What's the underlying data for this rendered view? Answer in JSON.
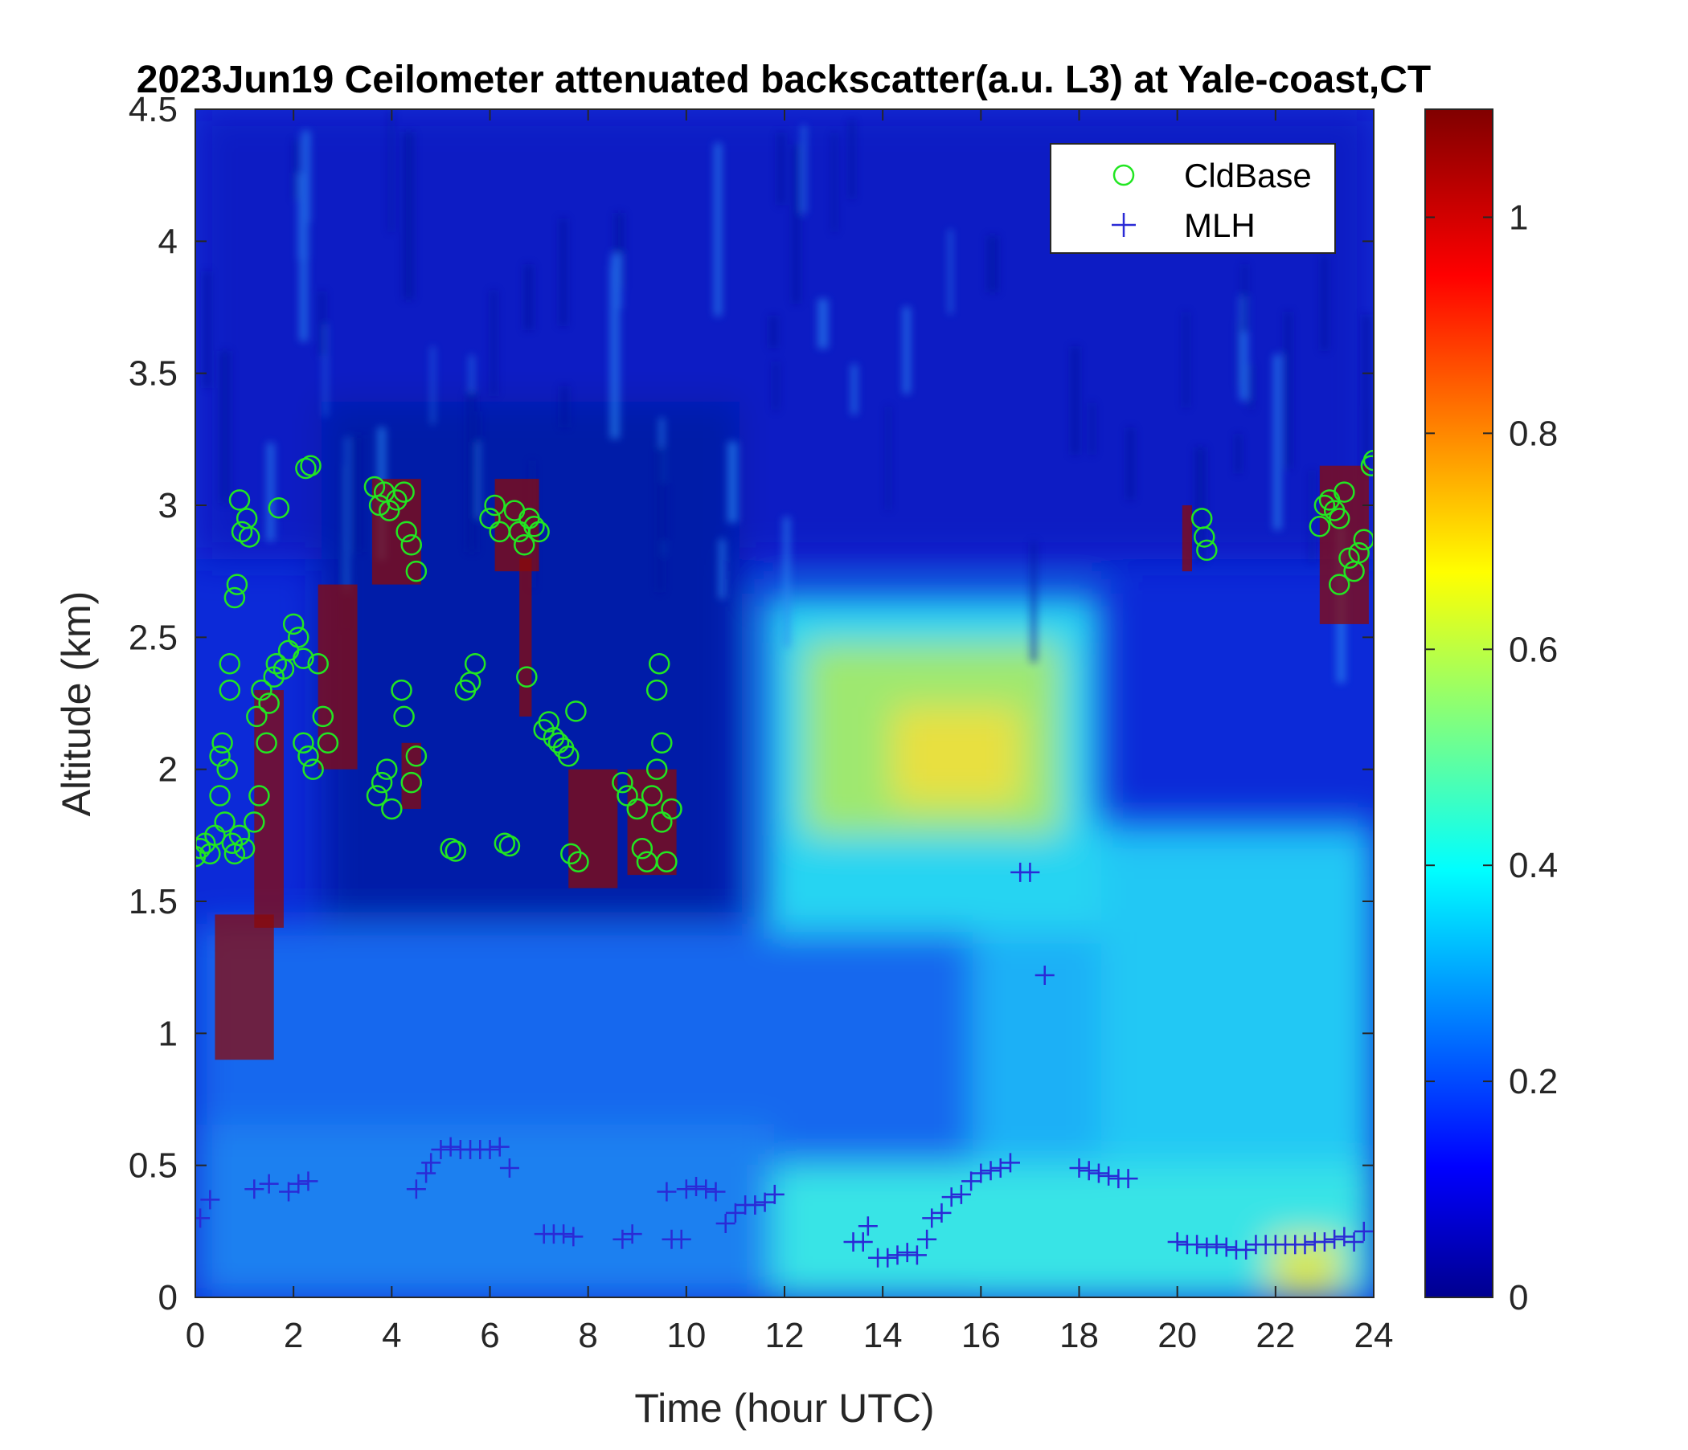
{
  "chart_data": {
    "type": "heatmap",
    "title": "2023Jun19 Ceilometer attenuated backscatter(a.u. L3) at Yale-coast,CT",
    "xlabel": "Time (hour UTC)",
    "ylabel": "Altitude (km)",
    "xlim": [
      0,
      24
    ],
    "ylim": [
      0,
      4.5
    ],
    "x_ticks": [
      "0",
      "2",
      "4",
      "6",
      "8",
      "10",
      "12",
      "14",
      "16",
      "18",
      "20",
      "22",
      "24"
    ],
    "y_ticks": [
      "0",
      "0.5",
      "1",
      "1.5",
      "2",
      "2.5",
      "3",
      "3.5",
      "4",
      "4.5"
    ],
    "colorbar": {
      "colormap": "jet",
      "range": [
        0,
        1.1
      ],
      "ticks": [
        "0",
        "0.2",
        "0.4",
        "0.6",
        "0.8",
        "1"
      ]
    },
    "grid": false,
    "legend_position": "top-right",
    "legend": [
      {
        "label": "CldBase",
        "marker": "circle",
        "color": "#22e622"
      },
      {
        "label": "MLH",
        "marker": "plus",
        "color": "#2a2ad6"
      }
    ],
    "series": [
      {
        "name": "CldBase",
        "marker": "circle",
        "color": "#22e622",
        "points": [
          [
            0.0,
            1.67
          ],
          [
            0.1,
            1.7
          ],
          [
            0.2,
            1.72
          ],
          [
            0.3,
            1.68
          ],
          [
            0.4,
            1.75
          ],
          [
            0.5,
            1.9
          ],
          [
            0.5,
            2.05
          ],
          [
            0.55,
            2.1
          ],
          [
            0.6,
            1.8
          ],
          [
            0.65,
            2.0
          ],
          [
            0.7,
            2.3
          ],
          [
            0.7,
            2.4
          ],
          [
            0.75,
            1.72
          ],
          [
            0.8,
            1.68
          ],
          [
            0.8,
            2.65
          ],
          [
            0.85,
            2.7
          ],
          [
            0.9,
            1.75
          ],
          [
            0.9,
            3.02
          ],
          [
            0.95,
            2.9
          ],
          [
            1.0,
            1.7
          ],
          [
            1.05,
            2.95
          ],
          [
            1.1,
            2.88
          ],
          [
            1.2,
            1.8
          ],
          [
            1.25,
            2.2
          ],
          [
            1.3,
            1.9
          ],
          [
            1.35,
            2.3
          ],
          [
            1.45,
            2.1
          ],
          [
            1.5,
            2.25
          ],
          [
            1.6,
            2.35
          ],
          [
            1.65,
            2.4
          ],
          [
            1.7,
            2.99
          ],
          [
            1.8,
            2.38
          ],
          [
            1.9,
            2.45
          ],
          [
            2.0,
            2.55
          ],
          [
            2.1,
            2.5
          ],
          [
            2.2,
            2.42
          ],
          [
            2.25,
            3.14
          ],
          [
            2.35,
            3.15
          ],
          [
            2.2,
            2.1
          ],
          [
            2.3,
            2.05
          ],
          [
            2.4,
            2.0
          ],
          [
            2.5,
            2.4
          ],
          [
            2.6,
            2.2
          ],
          [
            2.7,
            2.1
          ],
          [
            3.65,
            3.07
          ],
          [
            3.75,
            3.0
          ],
          [
            3.85,
            3.05
          ],
          [
            3.95,
            2.98
          ],
          [
            4.1,
            3.02
          ],
          [
            4.25,
            3.05
          ],
          [
            4.3,
            2.9
          ],
          [
            4.4,
            2.85
          ],
          [
            4.5,
            2.75
          ],
          [
            3.7,
            1.9
          ],
          [
            3.8,
            1.95
          ],
          [
            3.9,
            2.0
          ],
          [
            4.0,
            1.85
          ],
          [
            4.2,
            2.3
          ],
          [
            4.25,
            2.2
          ],
          [
            4.5,
            2.05
          ],
          [
            4.4,
            1.95
          ],
          [
            5.2,
            1.7
          ],
          [
            5.3,
            1.69
          ],
          [
            5.5,
            2.3
          ],
          [
            5.6,
            2.33
          ],
          [
            5.7,
            2.4
          ],
          [
            6.0,
            2.95
          ],
          [
            6.1,
            3.0
          ],
          [
            6.2,
            2.9
          ],
          [
            6.3,
            1.72
          ],
          [
            6.4,
            1.71
          ],
          [
            6.5,
            2.98
          ],
          [
            6.6,
            2.9
          ],
          [
            6.7,
            2.85
          ],
          [
            6.8,
            2.95
          ],
          [
            6.9,
            2.92
          ],
          [
            7.0,
            2.9
          ],
          [
            6.75,
            2.35
          ],
          [
            7.1,
            2.15
          ],
          [
            7.2,
            2.18
          ],
          [
            7.3,
            2.12
          ],
          [
            7.4,
            2.1
          ],
          [
            7.5,
            2.08
          ],
          [
            7.6,
            2.05
          ],
          [
            7.65,
            1.68
          ],
          [
            7.8,
            1.65
          ],
          [
            7.75,
            2.22
          ],
          [
            8.7,
            1.95
          ],
          [
            8.8,
            1.9
          ],
          [
            9.0,
            1.85
          ],
          [
            9.1,
            1.7
          ],
          [
            9.2,
            1.65
          ],
          [
            9.3,
            1.9
          ],
          [
            9.4,
            2.0
          ],
          [
            9.5,
            1.8
          ],
          [
            9.6,
            1.65
          ],
          [
            9.7,
            1.85
          ],
          [
            9.45,
            2.4
          ],
          [
            9.4,
            2.3
          ],
          [
            9.5,
            2.1
          ],
          [
            20.5,
            2.95
          ],
          [
            20.55,
            2.88
          ],
          [
            20.6,
            2.83
          ],
          [
            22.9,
            2.92
          ],
          [
            23.0,
            3.0
          ],
          [
            23.1,
            3.02
          ],
          [
            23.2,
            2.98
          ],
          [
            23.3,
            2.95
          ],
          [
            23.4,
            3.05
          ],
          [
            23.5,
            2.8
          ],
          [
            23.3,
            2.7
          ],
          [
            23.6,
            2.75
          ],
          [
            23.7,
            2.82
          ],
          [
            23.8,
            2.87
          ],
          [
            23.95,
            3.15
          ],
          [
            24.0,
            3.17
          ]
        ]
      },
      {
        "name": "MLH",
        "marker": "plus",
        "color": "#2a2ad6",
        "points": [
          [
            0.1,
            0.3
          ],
          [
            0.3,
            0.37
          ],
          [
            1.2,
            0.41
          ],
          [
            1.5,
            0.43
          ],
          [
            1.9,
            0.4
          ],
          [
            2.1,
            0.43
          ],
          [
            2.3,
            0.44
          ],
          [
            4.5,
            0.41
          ],
          [
            4.7,
            0.47
          ],
          [
            4.8,
            0.51
          ],
          [
            5.0,
            0.56
          ],
          [
            5.2,
            0.57
          ],
          [
            5.4,
            0.56
          ],
          [
            5.6,
            0.56
          ],
          [
            5.8,
            0.56
          ],
          [
            6.0,
            0.56
          ],
          [
            6.2,
            0.57
          ],
          [
            6.4,
            0.49
          ],
          [
            7.1,
            0.24
          ],
          [
            7.3,
            0.24
          ],
          [
            7.5,
            0.24
          ],
          [
            7.7,
            0.23
          ],
          [
            8.7,
            0.22
          ],
          [
            8.9,
            0.24
          ],
          [
            9.7,
            0.22
          ],
          [
            9.9,
            0.22
          ],
          [
            9.6,
            0.4
          ],
          [
            10.0,
            0.41
          ],
          [
            10.2,
            0.42
          ],
          [
            10.4,
            0.41
          ],
          [
            10.6,
            0.4
          ],
          [
            10.8,
            0.28
          ],
          [
            11.0,
            0.32
          ],
          [
            11.2,
            0.35
          ],
          [
            11.4,
            0.35
          ],
          [
            11.6,
            0.36
          ],
          [
            11.8,
            0.39
          ],
          [
            13.4,
            0.21
          ],
          [
            13.6,
            0.21
          ],
          [
            13.7,
            0.27
          ],
          [
            13.9,
            0.15
          ],
          [
            14.1,
            0.15
          ],
          [
            14.3,
            0.16
          ],
          [
            14.5,
            0.17
          ],
          [
            14.7,
            0.16
          ],
          [
            14.9,
            0.22
          ],
          [
            15.0,
            0.3
          ],
          [
            15.2,
            0.32
          ],
          [
            15.4,
            0.38
          ],
          [
            15.6,
            0.39
          ],
          [
            15.8,
            0.44
          ],
          [
            16.0,
            0.47
          ],
          [
            16.2,
            0.48
          ],
          [
            16.4,
            0.49
          ],
          [
            16.6,
            0.51
          ],
          [
            16.8,
            1.61
          ],
          [
            17.0,
            1.61
          ],
          [
            17.3,
            1.22
          ],
          [
            18.0,
            0.49
          ],
          [
            18.2,
            0.48
          ],
          [
            18.4,
            0.47
          ],
          [
            18.6,
            0.46
          ],
          [
            18.8,
            0.45
          ],
          [
            19.0,
            0.45
          ],
          [
            20.0,
            0.21
          ],
          [
            20.2,
            0.2
          ],
          [
            20.4,
            0.2
          ],
          [
            20.6,
            0.19
          ],
          [
            20.8,
            0.2
          ],
          [
            21.0,
            0.19
          ],
          [
            21.2,
            0.18
          ],
          [
            21.4,
            0.18
          ],
          [
            21.6,
            0.2
          ],
          [
            21.8,
            0.2
          ],
          [
            22.0,
            0.2
          ],
          [
            22.2,
            0.2
          ],
          [
            22.4,
            0.2
          ],
          [
            22.6,
            0.2
          ],
          [
            22.8,
            0.21
          ],
          [
            23.0,
            0.21
          ],
          [
            23.2,
            0.22
          ],
          [
            23.4,
            0.23
          ],
          [
            23.6,
            0.21
          ],
          [
            23.8,
            0.25
          ]
        ]
      }
    ]
  }
}
